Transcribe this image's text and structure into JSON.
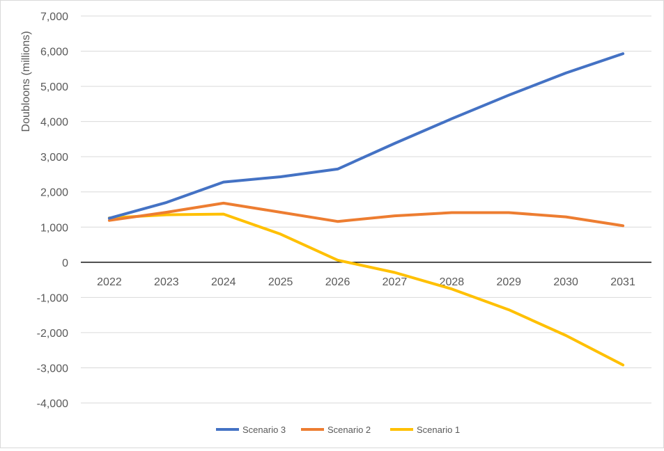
{
  "chart_data": {
    "type": "line",
    "title": "",
    "xlabel": "",
    "ylabel": "Doubloons (millions)",
    "ylim": [
      -4000,
      7000
    ],
    "y_ticks": [
      7000,
      6000,
      5000,
      4000,
      3000,
      2000,
      1000,
      0,
      -1000,
      -2000,
      -3000,
      -4000
    ],
    "y_tick_labels": [
      "7,000",
      "6,000",
      "5,000",
      "4,000",
      "3,000",
      "2,000",
      "1,000",
      "0",
      "-1,000",
      "-2,000",
      "-3,000",
      "-4,000"
    ],
    "categories": [
      "2022",
      "2023",
      "2024",
      "2025",
      "2026",
      "2027",
      "2028",
      "2029",
      "2030",
      "2031"
    ],
    "grid": true,
    "legend_position": "bottom",
    "series": [
      {
        "name": "Scenario 3",
        "color": "#4472c4",
        "values": [
          1250,
          1700,
          2280,
          2430,
          2650,
          3380,
          4080,
          4750,
          5380,
          5930
        ]
      },
      {
        "name": "Scenario 2",
        "color": "#ed7d31",
        "values": [
          1190,
          1420,
          1680,
          1420,
          1160,
          1320,
          1410,
          1410,
          1290,
          1040
        ]
      },
      {
        "name": "Scenario 1",
        "color": "#ffc000",
        "values": [
          1260,
          1350,
          1370,
          800,
          60,
          -290,
          -760,
          -1350,
          -2080,
          -2920
        ]
      }
    ]
  }
}
